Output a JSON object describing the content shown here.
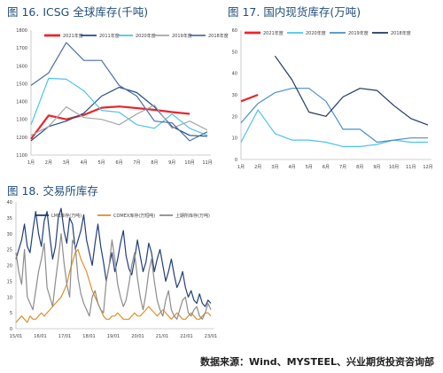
{
  "fig16": {
    "title": "图 16. ICSG 全球库存(千吨)",
    "chart_data": {
      "type": "line",
      "categories": [
        "1月",
        "2月",
        "3月",
        "4月",
        "5月",
        "6月",
        "7月",
        "8月",
        "9月",
        "10月",
        "11月"
      ],
      "ylim": [
        1100,
        1800
      ],
      "yticks": [
        "1100",
        "1200",
        "1300",
        "1400",
        "1500",
        "1600",
        "1700",
        "1800"
      ],
      "yticks_val": [
        1100,
        1200,
        1300,
        1400,
        1500,
        1600,
        1700,
        1800
      ],
      "grid": false,
      "legend_position": "top",
      "series": [
        {
          "name": "2021年度",
          "color": "#e8262b",
          "width": 2.2,
          "values": [
            1190,
            1322,
            1300,
            1325,
            1365,
            1372,
            1363,
            1353,
            1341,
            1331,
            null
          ]
        },
        {
          "name": "2011年度",
          "color": "#1f4e8c",
          "width": 1.2,
          "values": [
            1180,
            1260,
            1290,
            1335,
            1430,
            1480,
            1450,
            1370,
            1260,
            1210,
            1205
          ]
        },
        {
          "name": "2020年度",
          "color": "#4dc3ee",
          "width": 1.2,
          "values": [
            1270,
            1530,
            1525,
            1460,
            1350,
            1340,
            1270,
            1250,
            1330,
            1250,
            1210
          ]
        },
        {
          "name": "2019年度",
          "color": "#a6a6a6",
          "width": 1.2,
          "values": [
            1210,
            1260,
            1370,
            1310,
            1300,
            1270,
            1330,
            1380,
            1250,
            1290,
            1240
          ]
        },
        {
          "name": "2018年度",
          "color": "#4a6fa5",
          "width": 1.2,
          "values": [
            1490,
            1560,
            1730,
            1630,
            1630,
            1490,
            1430,
            1290,
            1280,
            1180,
            1230
          ]
        }
      ]
    }
  },
  "fig17": {
    "title": "图 17. 国内现货库存(万吨)",
    "chart_data": {
      "type": "line",
      "categories": [
        "1月",
        "2月",
        "3月",
        "4月",
        "5月",
        "6月",
        "7月",
        "8月",
        "9月",
        "10月",
        "11月",
        "12月"
      ],
      "ylim": [
        0,
        60
      ],
      "yticks": [
        "0",
        "10",
        "20",
        "30",
        "40",
        "50",
        "60"
      ],
      "yticks_val": [
        0,
        10,
        20,
        30,
        40,
        50,
        60
      ],
      "grid": false,
      "legend_position": "top",
      "series": [
        {
          "name": "2021年度",
          "color": "#e8262b",
          "width": 2.2,
          "values": [
            27,
            30,
            null,
            null,
            null,
            null,
            null,
            null,
            null,
            null,
            null,
            null
          ]
        },
        {
          "name": "2020年度",
          "color": "#4dc3ee",
          "width": 1.2,
          "values": [
            8,
            23,
            12,
            9,
            9,
            8,
            6,
            6,
            7,
            9,
            8,
            8
          ]
        },
        {
          "name": "2019年度",
          "color": "#4a8fc4",
          "width": 1.2,
          "values": [
            17,
            26,
            31,
            33,
            33,
            27,
            14,
            14,
            8,
            9,
            10,
            10
          ]
        },
        {
          "name": "2018年度",
          "color": "#1f3864",
          "width": 1.2,
          "values": [
            null,
            null,
            48,
            37,
            22,
            20,
            29,
            33,
            32,
            25,
            19,
            16
          ]
        }
      ]
    }
  },
  "fig18": {
    "title": "图 18. 交易所库存",
    "chart_data": {
      "type": "line",
      "x_labels": [
        "15/01",
        "16/01",
        "17/01",
        "18/01",
        "19/01",
        "20/01",
        "21/01",
        "22/01",
        "23/01"
      ],
      "ylim": [
        0,
        40
      ],
      "yticks": [
        "0",
        "5",
        "10",
        "15",
        "20",
        "25",
        "30",
        "35",
        "40"
      ],
      "yticks_val": [
        0,
        5,
        10,
        15,
        20,
        25,
        30,
        35,
        40
      ],
      "grid": false,
      "legend_position": "top",
      "series": [
        {
          "name": "LME库存(万吨)",
          "color": "#203f7a",
          "width": 1.2,
          "values": [
            22,
            25,
            28,
            33,
            26,
            24,
            31,
            37,
            30,
            26,
            34,
            37,
            29,
            22,
            26,
            35,
            38,
            31,
            27,
            35,
            33,
            25,
            28,
            31,
            36,
            28,
            24,
            20,
            27,
            33,
            26,
            21,
            15,
            20,
            24,
            18,
            22,
            27,
            31,
            23,
            19,
            17,
            22,
            28,
            23,
            18,
            21,
            27,
            24,
            18,
            22,
            25,
            20,
            15,
            18,
            22,
            17,
            13,
            15,
            18,
            13,
            10,
            12,
            9,
            8,
            11,
            8,
            7,
            9,
            8
          ]
        },
        {
          "name": "COMEX库存(万短吨)",
          "color": "#e0902c",
          "width": 1.2,
          "values": [
            2,
            3,
            4,
            3,
            2,
            4,
            3,
            3,
            4,
            5,
            4,
            5,
            6,
            7,
            8,
            9,
            10,
            12,
            14,
            18,
            21,
            24,
            25,
            22,
            20,
            18,
            15,
            12,
            10,
            8,
            6,
            4,
            3,
            3,
            4,
            4,
            5,
            4,
            3,
            3,
            3,
            4,
            5,
            4,
            4,
            5,
            6,
            7,
            6,
            5,
            4,
            5,
            6,
            5,
            4,
            3,
            4,
            5,
            4,
            3,
            3,
            4,
            5,
            4,
            3,
            3,
            4,
            5,
            5,
            4
          ]
        },
        {
          "name": "上期所库存(万吨)",
          "color": "#8c8c8c",
          "width": 1.2,
          "values": [
            24,
            18,
            14,
            25,
            10,
            8,
            6,
            12,
            18,
            22,
            27,
            13,
            10,
            7,
            15,
            22,
            30,
            21,
            14,
            10,
            28,
            26,
            16,
            11,
            8,
            6,
            4,
            10,
            12,
            8,
            6,
            5,
            15,
            20,
            28,
            22,
            14,
            10,
            7,
            9,
            14,
            20,
            24,
            16,
            10,
            6,
            11,
            18,
            22,
            15,
            9,
            6,
            4,
            9,
            12,
            6,
            4,
            3,
            6,
            9,
            10,
            5,
            4,
            6,
            7,
            4,
            3,
            5,
            8,
            6
          ]
        }
      ]
    }
  },
  "source": "数据来源：Wind、MYSTEEL、兴业期货投资咨询部"
}
